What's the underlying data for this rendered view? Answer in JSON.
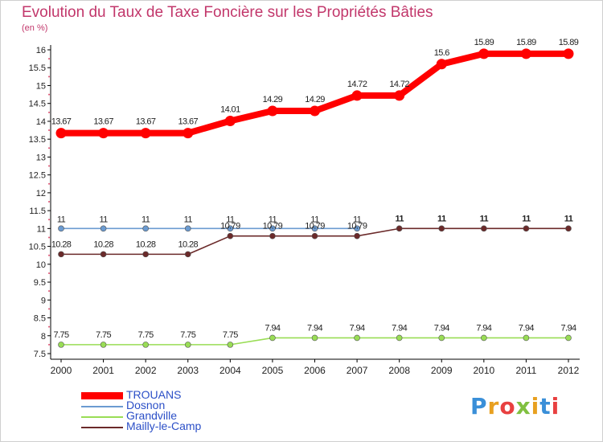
{
  "title": "Evolution du Taux de Taxe Foncière sur les Propriétés Bâties",
  "unit_label": "(en %)",
  "logo_text": "Proxiti",
  "chart_data": {
    "type": "line",
    "title": "Evolution du Taux de Taxe Foncière sur les Propriétés Bâties",
    "ylabel": "(en %)",
    "xlabel": "",
    "ylim": [
      7.5,
      16
    ],
    "yticks": [
      7.5,
      8,
      8.5,
      9,
      9.5,
      10,
      10.5,
      11,
      11.5,
      12,
      12.5,
      13,
      13.5,
      14,
      14.5,
      15,
      15.5,
      16
    ],
    "x": [
      "2000",
      "2001",
      "2002",
      "2003",
      "2004",
      "2005",
      "2006",
      "2007",
      "2008",
      "2009",
      "2010",
      "2011",
      "2012"
    ],
    "grid": false,
    "legend_position": "bottom-left",
    "series": [
      {
        "name": "TROUANS",
        "color": "#ff0000",
        "values": [
          13.67,
          13.67,
          13.67,
          13.67,
          14.01,
          14.29,
          14.29,
          14.72,
          14.72,
          15.6,
          15.89,
          15.89,
          15.89
        ],
        "labels": [
          "13.67",
          "13.67",
          "13.67",
          "13.67",
          "14.01",
          "14.29",
          "14.29",
          "14.72",
          "14.72",
          "15.6",
          "15.89",
          "15.89",
          "15.89"
        ]
      },
      {
        "name": "Dosnon",
        "color": "#6b9bd1",
        "values": [
          11,
          11,
          11,
          11,
          11,
          11,
          11,
          11,
          null,
          null,
          null,
          null,
          null
        ],
        "labels": [
          "11",
          "11",
          "11",
          "11",
          "11",
          "11",
          "11",
          "11",
          "",
          "",
          "",
          "",
          ""
        ]
      },
      {
        "name": "Grandville",
        "color": "#99dd55",
        "values": [
          7.75,
          7.75,
          7.75,
          7.75,
          7.75,
          7.94,
          7.94,
          7.94,
          7.94,
          7.94,
          7.94,
          7.94,
          7.94
        ],
        "labels": [
          "7.75",
          "7.75",
          "7.75",
          "7.75",
          "7.75",
          "7.94",
          "7.94",
          "7.94",
          "7.94",
          "7.94",
          "7.94",
          "7.94",
          "7.94"
        ]
      },
      {
        "name": "Mailly-le-Camp",
        "color": "#6b2a2a",
        "values": [
          10.28,
          10.28,
          10.28,
          10.28,
          10.79,
          10.79,
          10.79,
          10.79,
          11,
          11,
          11,
          11,
          11
        ],
        "labels": [
          "10.28",
          "10.28",
          "10.28",
          "10.28",
          "10.79",
          "10.79",
          "10.79",
          "10.79",
          "11",
          "11",
          "11",
          "11",
          "11"
        ]
      }
    ]
  }
}
